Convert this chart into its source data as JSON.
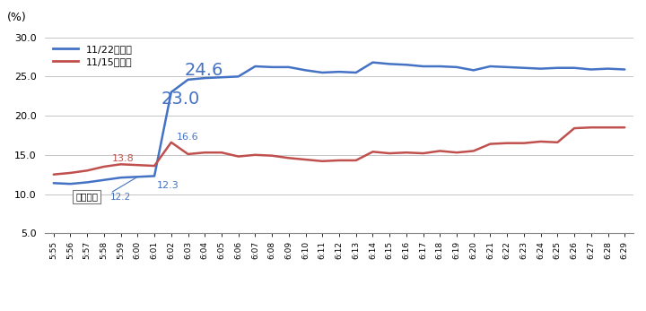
{
  "x_labels": [
    "5:55",
    "5:56",
    "5:57",
    "5:58",
    "5:59",
    "6:00",
    "6:01",
    "6:02",
    "6:03",
    "6:04",
    "6:05",
    "6:06",
    "6:07",
    "6:08",
    "6:09",
    "6:10",
    "6:11",
    "6:12",
    "6:13",
    "6:14",
    "6:15",
    "6:16",
    "6:17",
    "6:18",
    "6:19",
    "6:20",
    "6:21",
    "6:22",
    "6:23",
    "6:24",
    "6:25",
    "6:26",
    "6:27",
    "6:28",
    "6:29"
  ],
  "blue_data": [
    11.4,
    11.3,
    11.5,
    11.8,
    12.1,
    12.2,
    12.3,
    23.0,
    24.6,
    24.8,
    24.9,
    25.0,
    26.3,
    26.2,
    26.2,
    25.8,
    25.5,
    25.6,
    25.5,
    26.8,
    26.6,
    26.5,
    26.3,
    26.3,
    26.2,
    25.8,
    26.3,
    26.2,
    26.1,
    26.0,
    26.1,
    26.1,
    25.9,
    26.0,
    25.9
  ],
  "red_data": [
    12.5,
    12.7,
    13.0,
    13.5,
    13.8,
    13.7,
    13.6,
    16.6,
    15.1,
    15.3,
    15.3,
    14.8,
    15.0,
    14.9,
    14.6,
    14.4,
    14.2,
    14.3,
    14.3,
    15.4,
    15.2,
    15.3,
    15.2,
    15.5,
    15.3,
    15.5,
    16.4,
    16.5,
    16.5,
    16.7,
    16.6,
    18.4,
    18.5,
    18.5,
    18.5
  ],
  "blue_color": "#4472C4",
  "red_color": "#C0504D",
  "ylim": [
    5.0,
    30.0
  ],
  "yticks": [
    5.0,
    10.0,
    15.0,
    20.0,
    25.0,
    30.0
  ],
  "ytick_labels": [
    "5.0",
    "10.0",
    "15.0",
    "20.0",
    "25.0",
    "30.0"
  ],
  "legend_blue": "11/22稼働計",
  "legend_red": "11/15稼働計",
  "ylabel": "(%)",
  "ann_23_text": "23.0",
  "ann_246_text": "24.6",
  "ann_138_text": "13.8",
  "ann_166_text": "16.6",
  "ann_123_text": "12.3",
  "eq_box_label": "地震発生",
  "eq_box_value": "12.2",
  "bg_color": "#FFFFFF",
  "grid_color": "#BBBBBB",
  "line_width": 1.8,
  "ann_23_idx": 7,
  "ann_246_idx": 8,
  "ann_138_idx": 4,
  "ann_166_idx": 7,
  "ann_123_idx": 6,
  "eq_idx": 5
}
